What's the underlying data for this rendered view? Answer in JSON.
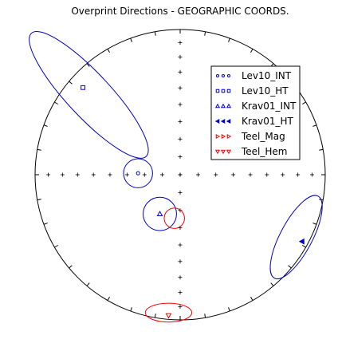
{
  "chart_data": {
    "type": "scatter",
    "title": "Overprint Directions - GEOGRAPHIC COORDS.",
    "projection": "equal-area stereonet",
    "series": [
      {
        "name": "Lev10_INT",
        "marker": "circle-open",
        "color": "#0000cc",
        "points": [
          {
            "x": -0.29,
            "y": 0.01,
            "a95": 0.1
          }
        ]
      },
      {
        "name": "Lev10_HT",
        "marker": "square-open",
        "color": "#0000cc",
        "points": [
          {
            "x": -0.67,
            "y": 0.6
          }
        ]
      },
      {
        "name": "Krav01_INT",
        "marker": "triangle-up-open",
        "color": "#0000cc",
        "points": [
          {
            "x": -0.14,
            "y": -0.27,
            "a95": 0.115
          }
        ]
      },
      {
        "name": "Krav01_HT",
        "marker": "triangle-left-filled",
        "color": "#0000cc",
        "points": [
          {
            "x": 0.84,
            "y": -0.46
          }
        ]
      },
      {
        "name": "Teel_Mag",
        "marker": "triangle-right-open",
        "color": "#ff0000",
        "points": []
      },
      {
        "name": "Teel_Hem",
        "marker": "triangle-down-open",
        "color": "#ff0000",
        "points": [
          {
            "x": -0.08,
            "y": -0.97
          }
        ]
      }
    ],
    "ellipses": [
      {
        "color": "#0000cc",
        "cx": -0.29,
        "cy": 0.01,
        "rx": 0.1,
        "ry": 0.1,
        "rot": 0
      },
      {
        "color": "#0000cc",
        "cx": -0.14,
        "cy": -0.27,
        "rx": 0.115,
        "ry": 0.115,
        "rot": 0
      },
      {
        "color": "#ff0000",
        "cx": -0.04,
        "cy": -0.3,
        "rx": 0.07,
        "ry": 0.07,
        "rot": 0
      },
      {
        "color": "#ff0000",
        "cx": -0.08,
        "cy": -0.95,
        "rx": 0.16,
        "ry": 0.065,
        "rot": 0
      },
      {
        "color": "#0000cc",
        "cx": 0.8,
        "cy": -0.43,
        "rx": 0.32,
        "ry": 0.11,
        "rot": -62
      },
      {
        "color": "#0000cc",
        "cx": -0.63,
        "cy": 0.55,
        "rx": 0.58,
        "ry": 0.15,
        "rot": 47
      }
    ],
    "legend_position": "top-right"
  }
}
